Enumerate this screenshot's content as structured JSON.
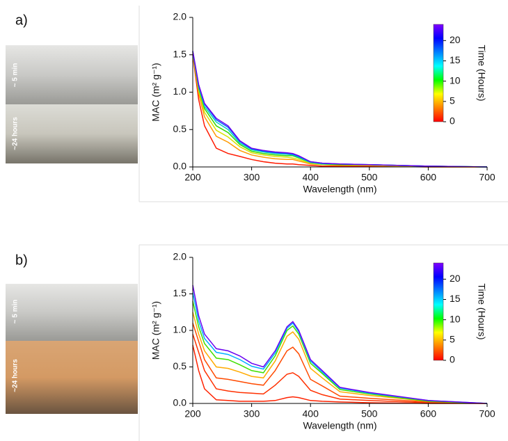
{
  "panels": [
    {
      "label": "a)",
      "photo_labels": [
        "~ 5 min",
        "~24 hours"
      ]
    },
    {
      "label": "b)",
      "photo_labels": [
        "~ 5 min",
        "~24 hours"
      ]
    }
  ],
  "chart_data": [
    {
      "type": "line",
      "xlabel": "Wavelength (nm)",
      "ylabel": "MAC (m² g⁻¹)",
      "x": [
        200,
        210,
        220,
        240,
        260,
        280,
        300,
        320,
        340,
        360,
        370,
        380,
        400,
        420,
        450,
        500,
        600,
        700
      ],
      "xlim": [
        200,
        700
      ],
      "xticks": [
        200,
        300,
        400,
        500,
        600,
        700
      ],
      "ylim": [
        0,
        2
      ],
      "yticks": [
        {
          "value": 0,
          "label": "0.0"
        },
        {
          "value": 0.5,
          "label": "0.5"
        },
        {
          "value": 1,
          "label": "1.0"
        },
        {
          "value": 1.5,
          "label": "1.5"
        },
        {
          "value": 2,
          "label": "2.0"
        }
      ],
      "series": [
        {
          "color": "#ff1a00",
          "values": [
            1.5,
            0.9,
            0.55,
            0.25,
            0.18,
            0.14,
            0.1,
            0.07,
            0.05,
            0.04,
            0.04,
            0.03,
            0.02,
            0.01,
            0.01,
            0.01,
            0,
            0
          ]
        },
        {
          "color": "#ff9900",
          "values": [
            1.52,
            0.98,
            0.67,
            0.41,
            0.33,
            0.22,
            0.16,
            0.13,
            0.11,
            0.1,
            0.1,
            0.08,
            0.04,
            0.03,
            0.02,
            0.02,
            0,
            0
          ]
        },
        {
          "color": "#d8e000",
          "values": [
            1.53,
            1.02,
            0.73,
            0.49,
            0.4,
            0.27,
            0.19,
            0.16,
            0.14,
            0.13,
            0.12,
            0.1,
            0.05,
            0.03,
            0.03,
            0.02,
            0.01,
            0
          ]
        },
        {
          "color": "#30d800",
          "values": [
            1.54,
            1.05,
            0.78,
            0.55,
            0.46,
            0.3,
            0.21,
            0.18,
            0.16,
            0.15,
            0.15,
            0.12,
            0.06,
            0.04,
            0.03,
            0.03,
            0.01,
            0
          ]
        },
        {
          "color": "#00d0c0",
          "values": [
            1.54,
            1.07,
            0.81,
            0.6,
            0.5,
            0.32,
            0.23,
            0.2,
            0.18,
            0.17,
            0.16,
            0.13,
            0.06,
            0.04,
            0.04,
            0.03,
            0.01,
            0
          ]
        },
        {
          "color": "#1060ff",
          "values": [
            1.55,
            1.09,
            0.84,
            0.63,
            0.53,
            0.34,
            0.24,
            0.21,
            0.19,
            0.18,
            0.17,
            0.14,
            0.07,
            0.05,
            0.04,
            0.03,
            0.01,
            0
          ]
        },
        {
          "color": "#6a00ee",
          "values": [
            1.55,
            1.1,
            0.85,
            0.65,
            0.55,
            0.35,
            0.25,
            0.22,
            0.2,
            0.19,
            0.18,
            0.15,
            0.07,
            0.05,
            0.04,
            0.03,
            0.01,
            0
          ]
        }
      ],
      "colorbar": {
        "label": "Time (Hours)",
        "lim": [
          0,
          24
        ],
        "ticks": [
          0,
          5,
          10,
          15,
          20
        ],
        "colors": [
          "#ff0000",
          "#ff8000",
          "#ffff00",
          "#00ff00",
          "#00ffff",
          "#0080ff",
          "#0000ff",
          "#8000ff"
        ]
      }
    },
    {
      "type": "line",
      "xlabel": "Wavelength (nm)",
      "ylabel": "MAC (m² g⁻¹)",
      "x": [
        200,
        210,
        220,
        240,
        260,
        280,
        300,
        320,
        340,
        360,
        370,
        380,
        400,
        420,
        450,
        500,
        600,
        700
      ],
      "xlim": [
        200,
        700
      ],
      "xticks": [
        200,
        300,
        400,
        500,
        600,
        700
      ],
      "ylim": [
        0,
        2
      ],
      "yticks": [
        {
          "value": 0,
          "label": "0.0"
        },
        {
          "value": 0.5,
          "label": "0.5"
        },
        {
          "value": 1,
          "label": "1.0"
        },
        {
          "value": 1.5,
          "label": "1.5"
        },
        {
          "value": 2,
          "label": "2.0"
        }
      ],
      "series": [
        {
          "color": "#ff2200",
          "values": [
            0.8,
            0.45,
            0.2,
            0.05,
            0.04,
            0.03,
            0.03,
            0.03,
            0.04,
            0.08,
            0.09,
            0.08,
            0.04,
            0.03,
            0.02,
            0.01,
            0,
            0
          ]
        },
        {
          "color": "#ff3000",
          "values": [
            0.95,
            0.7,
            0.45,
            0.2,
            0.17,
            0.15,
            0.14,
            0.13,
            0.25,
            0.4,
            0.42,
            0.37,
            0.18,
            0.12,
            0.06,
            0.04,
            0.01,
            0
          ]
        },
        {
          "color": "#ff4a00",
          "values": [
            1.1,
            0.85,
            0.6,
            0.35,
            0.33,
            0.3,
            0.27,
            0.25,
            0.45,
            0.72,
            0.77,
            0.68,
            0.33,
            0.24,
            0.1,
            0.07,
            0.02,
            0
          ]
        },
        {
          "color": "#ffaa00",
          "values": [
            1.25,
            0.95,
            0.72,
            0.5,
            0.48,
            0.43,
            0.37,
            0.35,
            0.58,
            0.92,
            0.98,
            0.88,
            0.48,
            0.35,
            0.16,
            0.11,
            0.03,
            0
          ]
        },
        {
          "color": "#40e000",
          "values": [
            1.4,
            1.05,
            0.82,
            0.62,
            0.6,
            0.53,
            0.45,
            0.42,
            0.65,
            1,
            1.06,
            0.95,
            0.55,
            0.41,
            0.19,
            0.13,
            0.03,
            0
          ]
        },
        {
          "color": "#00b0ff",
          "values": [
            1.52,
            1.13,
            0.89,
            0.7,
            0.67,
            0.6,
            0.51,
            0.47,
            0.69,
            1.03,
            1.1,
            0.98,
            0.58,
            0.43,
            0.21,
            0.14,
            0.04,
            0
          ]
        },
        {
          "color": "#6a00f0",
          "values": [
            1.62,
            1.2,
            0.95,
            0.75,
            0.72,
            0.65,
            0.55,
            0.5,
            0.72,
            1.05,
            1.12,
            1,
            0.6,
            0.45,
            0.22,
            0.15,
            0.04,
            0
          ]
        }
      ],
      "colorbar": {
        "label": "Time (Hours)",
        "lim": [
          0,
          24
        ],
        "ticks": [
          0,
          5,
          10,
          15,
          20
        ],
        "colors": [
          "#ff0000",
          "#ff8000",
          "#ffff00",
          "#00ff00",
          "#00ffff",
          "#0080ff",
          "#0000ff",
          "#8000ff"
        ]
      }
    }
  ]
}
